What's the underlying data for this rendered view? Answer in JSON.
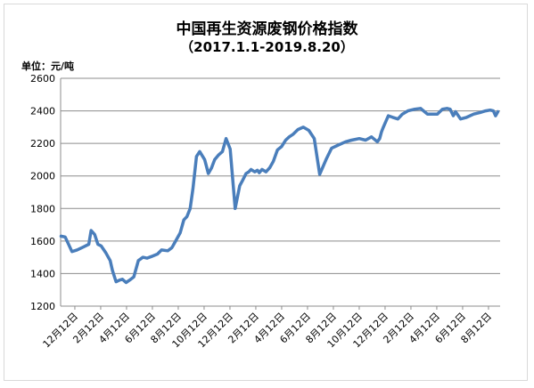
{
  "title": "中国再生资源废钢价格指数",
  "subtitle": "（2017.1.1-2019.8.20）",
  "unit_label": "单位：元/吨",
  "colors": {
    "line": "#4a7ebb",
    "grid": "#8c8c8c",
    "axis": "#8c8c8c"
  },
  "chart_data": {
    "type": "line",
    "title": "中国再生资源废钢价格指数",
    "subtitle": "（2017.1.1-2019.8.20）",
    "ylabel": "单位：元/吨",
    "ylim": [
      1200,
      2600
    ],
    "yticks": [
      1200,
      1400,
      1600,
      1800,
      2000,
      2200,
      2400,
      2600
    ],
    "xticks": [
      "12月12日",
      "2月12日",
      "4月12日",
      "6月12日",
      "8月12日",
      "10月12日",
      "12月12日",
      "2月12日",
      "4月12日",
      "6月12日",
      "8月12日",
      "10月12日",
      "12月12日",
      "2月12日",
      "4月12日",
      "6月12日",
      "8月12日"
    ],
    "grid": true,
    "legend": "none",
    "x": [
      "2017-01-01",
      "2017-01-10",
      "2017-01-25",
      "2017-02-05",
      "2017-02-20",
      "2017-03-03",
      "2017-03-08",
      "2017-03-16",
      "2017-03-23",
      "2017-03-30",
      "2017-04-09",
      "2017-04-14",
      "2017-04-19",
      "2017-04-24",
      "2017-05-02",
      "2017-05-10",
      "2017-05-16",
      "2017-05-24",
      "2017-06-01",
      "2017-06-10",
      "2017-06-20",
      "2017-06-30",
      "2017-07-09",
      "2017-07-19",
      "2017-08-01",
      "2017-08-10",
      "2017-08-24",
      "2017-09-02",
      "2017-09-10",
      "2017-09-20",
      "2017-09-28",
      "2017-10-05",
      "2017-10-12",
      "2017-10-18",
      "2017-10-26",
      "2017-11-02",
      "2017-11-13",
      "2017-11-21",
      "2017-11-28",
      "2017-12-05",
      "2017-12-14",
      "2017-12-22",
      "2017-12-30",
      "2018-01-08",
      "2018-01-19",
      "2018-01-29",
      "2018-02-04",
      "2018-02-12",
      "2018-02-18",
      "2018-02-23",
      "2018-03-03",
      "2018-03-09",
      "2018-03-13",
      "2018-03-19",
      "2018-03-28",
      "2018-04-05",
      "2018-04-13",
      "2018-04-22",
      "2018-05-01",
      "2018-05-10",
      "2018-05-18",
      "2018-05-26",
      "2018-06-06",
      "2018-06-18",
      "2018-06-30",
      "2018-07-12",
      "2018-07-24",
      "2018-08-07",
      "2018-08-19",
      "2018-09-03",
      "2018-09-19",
      "2018-10-02",
      "2018-10-19",
      "2018-11-02",
      "2018-11-15",
      "2018-11-28",
      "2018-12-03",
      "2018-12-07",
      "2018-12-11",
      "2018-12-22",
      "2019-01-01",
      "2019-01-12",
      "2019-01-22",
      "2019-02-03",
      "2019-02-18",
      "2019-03-03",
      "2019-03-18",
      "2019-03-30",
      "2019-04-09",
      "2019-04-20",
      "2019-04-30",
      "2019-05-07",
      "2019-05-14",
      "2019-05-19",
      "2019-05-30",
      "2019-06-12",
      "2019-06-28",
      "2019-07-12",
      "2019-07-24",
      "2019-08-03",
      "2019-08-10",
      "2019-08-15",
      "2019-08-20"
    ],
    "series": [
      {
        "values": [
          1630,
          1625,
          1535,
          1545,
          1565,
          1580,
          1665,
          1640,
          1580,
          1570,
          1530,
          1505,
          1480,
          1420,
          1350,
          1360,
          1365,
          1345,
          1360,
          1380,
          1480,
          1500,
          1495,
          1505,
          1520,
          1545,
          1540,
          1560,
          1600,
          1650,
          1730,
          1750,
          1800,
          1920,
          2120,
          2150,
          2100,
          2015,
          2050,
          2100,
          2130,
          2150,
          2230,
          2165,
          1800,
          1940,
          1970,
          2015,
          2025,
          2040,
          2025,
          2035,
          2020,
          2040,
          2025,
          2050,
          2090,
          2160,
          2180,
          2220,
          2240,
          2255,
          2285,
          2300,
          2280,
          2230,
          2010,
          2100,
          2170,
          2190,
          2210,
          2220,
          2230,
          2220,
          2240,
          2210,
          2230,
          2270,
          2300,
          2370,
          2360,
          2350,
          2380,
          2400,
          2410,
          2415,
          2380,
          2380,
          2380,
          2410,
          2415,
          2410,
          2370,
          2395,
          2350,
          2360,
          2380,
          2390,
          2400,
          2405,
          2400,
          2370,
          2395
        ],
        "color": "#4a7ebb"
      }
    ]
  }
}
